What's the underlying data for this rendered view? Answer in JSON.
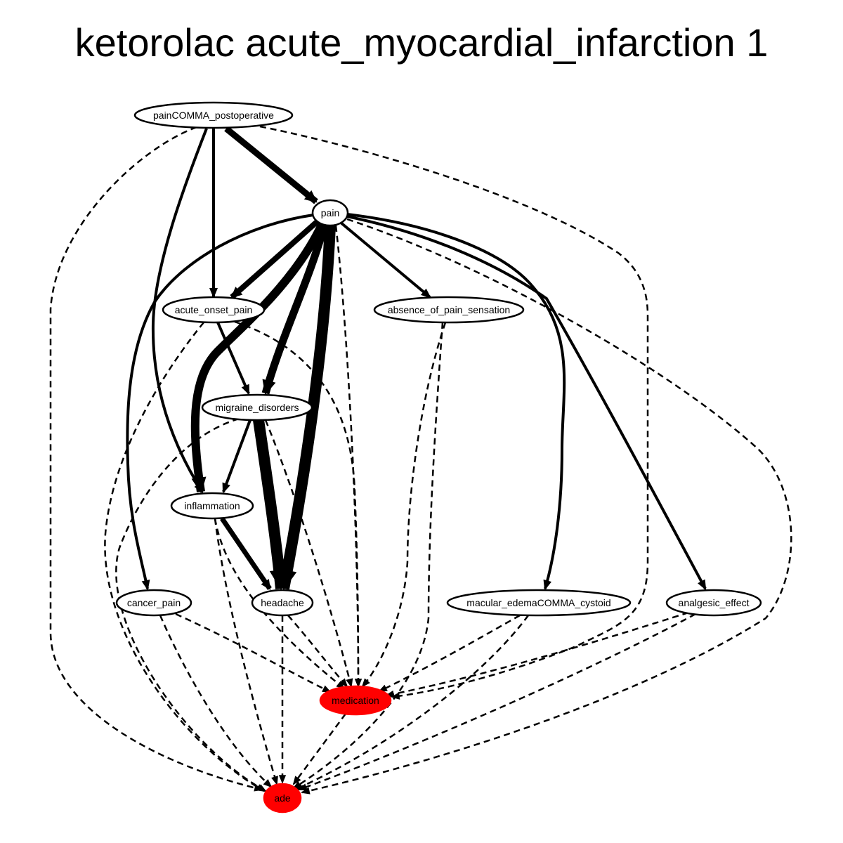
{
  "title": "ketorolac acute_myocardial_infarction 1",
  "colors": {
    "outcome_fill": "#ff0000",
    "node_fill": "#ffffff",
    "stroke": "#000000"
  },
  "nodes": [
    {
      "id": "painCOMMA_postoperative",
      "label": "painCOMMA_postoperative"
    },
    {
      "id": "pain",
      "label": "pain"
    },
    {
      "id": "acute_onset_pain",
      "label": "acute_onset_pain"
    },
    {
      "id": "absence_of_pain_sensation",
      "label": "absence_of_pain_sensation"
    },
    {
      "id": "migraine_disorders",
      "label": "migraine_disorders"
    },
    {
      "id": "inflammation",
      "label": "inflammation"
    },
    {
      "id": "cancer_pain",
      "label": "cancer_pain"
    },
    {
      "id": "headache",
      "label": "headache"
    },
    {
      "id": "macular_edemaCOMMA_cystoid",
      "label": "macular_edemaCOMMA_cystoid"
    },
    {
      "id": "analgesic_effect",
      "label": "analgesic_effect"
    },
    {
      "id": "medication",
      "label": "medication",
      "outcome": true
    },
    {
      "id": "ade",
      "label": "ade",
      "outcome": true
    }
  ],
  "edges": [
    {
      "from": "painCOMMA_postoperative",
      "to": "pain",
      "style": "solid",
      "weight": 9
    },
    {
      "from": "painCOMMA_postoperative",
      "to": "acute_onset_pain",
      "style": "solid",
      "weight": 4
    },
    {
      "from": "painCOMMA_postoperative",
      "to": "inflammation",
      "style": "solid",
      "weight": 4
    },
    {
      "from": "painCOMMA_postoperative",
      "to": "ade",
      "style": "dashed",
      "weight": 2
    },
    {
      "from": "painCOMMA_postoperative",
      "to": "medication",
      "style": "dashed",
      "weight": 2
    },
    {
      "from": "pain",
      "to": "acute_onset_pain",
      "style": "solid",
      "weight": 8
    },
    {
      "from": "pain",
      "to": "absence_of_pain_sensation",
      "style": "solid",
      "weight": 4
    },
    {
      "from": "pain",
      "to": "migraine_disorders",
      "style": "solid",
      "weight": 11
    },
    {
      "from": "pain",
      "to": "inflammation",
      "style": "solid",
      "weight": 12
    },
    {
      "from": "pain",
      "to": "headache",
      "style": "solid",
      "weight": 16
    },
    {
      "from": "pain",
      "to": "cancer_pain",
      "style": "solid",
      "weight": 4
    },
    {
      "from": "pain",
      "to": "macular_edemaCOMMA_cystoid",
      "style": "solid",
      "weight": 4
    },
    {
      "from": "pain",
      "to": "analgesic_effect",
      "style": "solid",
      "weight": 4
    },
    {
      "from": "pain",
      "to": "medication",
      "style": "dashed",
      "weight": 2
    },
    {
      "from": "pain",
      "to": "ade",
      "style": "dashed",
      "weight": 2
    },
    {
      "from": "acute_onset_pain",
      "to": "migraine_disorders",
      "style": "solid",
      "weight": 4
    },
    {
      "from": "acute_onset_pain",
      "to": "medication",
      "style": "dashed",
      "weight": 2
    },
    {
      "from": "acute_onset_pain",
      "to": "ade",
      "style": "dashed",
      "weight": 2
    },
    {
      "from": "absence_of_pain_sensation",
      "to": "medication",
      "style": "dashed",
      "weight": 2
    },
    {
      "from": "absence_of_pain_sensation",
      "to": "ade",
      "style": "dashed",
      "weight": 2
    },
    {
      "from": "migraine_disorders",
      "to": "inflammation",
      "style": "solid",
      "weight": 4
    },
    {
      "from": "migraine_disorders",
      "to": "headache",
      "style": "solid",
      "weight": 16
    },
    {
      "from": "migraine_disorders",
      "to": "medication",
      "style": "dashed",
      "weight": 2
    },
    {
      "from": "migraine_disorders",
      "to": "ade",
      "style": "dashed",
      "weight": 2
    },
    {
      "from": "inflammation",
      "to": "headache",
      "style": "solid",
      "weight": 7
    },
    {
      "from": "inflammation",
      "to": "medication",
      "style": "dashed",
      "weight": 2
    },
    {
      "from": "inflammation",
      "to": "ade",
      "style": "dashed",
      "weight": 2
    },
    {
      "from": "cancer_pain",
      "to": "medication",
      "style": "dashed",
      "weight": 2
    },
    {
      "from": "cancer_pain",
      "to": "ade",
      "style": "dashed",
      "weight": 2
    },
    {
      "from": "headache",
      "to": "medication",
      "style": "dashed",
      "weight": 2
    },
    {
      "from": "headache",
      "to": "ade",
      "style": "dashed",
      "weight": 2
    },
    {
      "from": "macular_edemaCOMMA_cystoid",
      "to": "medication",
      "style": "dashed",
      "weight": 2
    },
    {
      "from": "macular_edemaCOMMA_cystoid",
      "to": "ade",
      "style": "dashed",
      "weight": 2
    },
    {
      "from": "analgesic_effect",
      "to": "medication",
      "style": "dashed",
      "weight": 2
    },
    {
      "from": "analgesic_effect",
      "to": "ade",
      "style": "dashed",
      "weight": 2
    },
    {
      "from": "medication",
      "to": "ade",
      "style": "dashed",
      "weight": 2
    }
  ]
}
